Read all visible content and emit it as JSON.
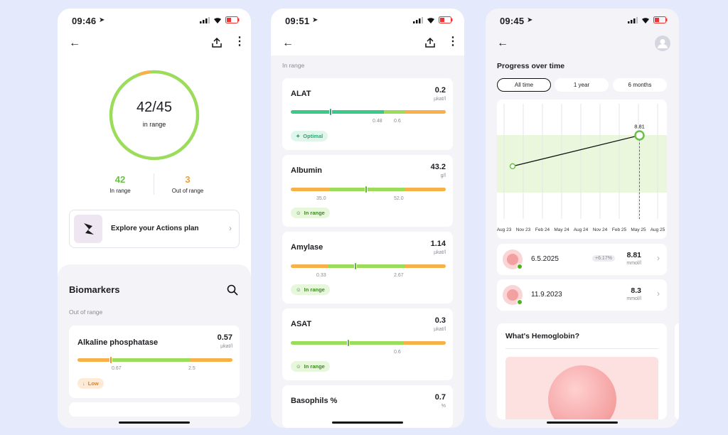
{
  "screen1": {
    "time": "09:46",
    "ring": {
      "value": "42/45",
      "label": "in range",
      "fraction": 0.933
    },
    "in_range": {
      "value": "42",
      "label": "In range"
    },
    "out_range": {
      "value": "3",
      "label": "Out of range"
    },
    "actions_label": "Explore your Actions plan",
    "biomarkers_title": "Biomarkers",
    "section_label": "Out of range",
    "card": {
      "name": "Alkaline phosphatase",
      "value": "0.57",
      "unit": "µkat/l",
      "ticks": [
        "0.67",
        "2.5"
      ],
      "status": "Low"
    }
  },
  "screen2": {
    "time": "09:51",
    "section_label": "In range",
    "cards": [
      {
        "name": "ALAT",
        "value": "0.2",
        "unit": "µkat/l",
        "ticks": [
          "0.48",
          "0.6"
        ],
        "status": "Optimal",
        "level": 0.25
      },
      {
        "name": "Albumin",
        "value": "43.2",
        "unit": "g/l",
        "ticks": [
          "35.0",
          "52.0"
        ],
        "status": "In range",
        "level": 0.49
      },
      {
        "name": "Amylase",
        "value": "1.14",
        "unit": "µkat/l",
        "ticks": [
          "0.33",
          "2.67"
        ],
        "status": "In range",
        "level": 0.41
      },
      {
        "name": "ASAT",
        "value": "0.3",
        "unit": "µkat/l",
        "ticks": [
          "0.6"
        ],
        "status": "In range",
        "level": 0.37
      },
      {
        "name": "Basophils %",
        "value": "0.7",
        "unit": "%"
      }
    ]
  },
  "screen3": {
    "time": "09:45",
    "title": "Progress over time",
    "filters": [
      "All time",
      "1 year",
      "6 months"
    ],
    "chart_data": {
      "type": "line",
      "x": [
        "2023-09-11",
        "2025-05-06"
      ],
      "y": [
        8.3,
        8.81
      ],
      "point_label": "8.81",
      "x_tick_labels": [
        "Aug 23",
        "Nov 23",
        "Feb 24",
        "May 24",
        "Aug 24",
        "Nov 24",
        "Feb 25",
        "May 25",
        "Aug 25"
      ]
    },
    "entries": [
      {
        "date": "6.5.2025",
        "change": "+6.17%",
        "value": "8.81",
        "unit": "mmol/l"
      },
      {
        "date": "11.9.2023",
        "value": "8.3",
        "unit": "mmol/l"
      }
    ],
    "info_title": "What's Hemoglobin?"
  },
  "colors": {
    "green": "#9bdc5a",
    "teal": "#3bc98a",
    "orange": "#f7b04a",
    "band": "#eaf7dc"
  }
}
